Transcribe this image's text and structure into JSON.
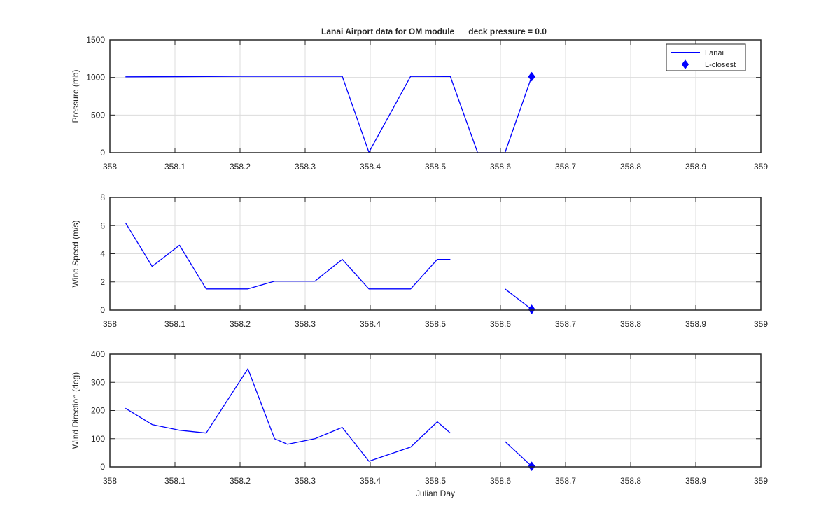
{
  "title": "Lanai Airport data for OM module      deck pressure = 0.0",
  "colors": {
    "series": "#0000ff",
    "grid": "#dcdcdc",
    "axes": "#262626",
    "background": "#ffffff"
  },
  "chart_data": [
    {
      "type": "line",
      "ylabel": "Pressure (mb)",
      "xlabel": "",
      "xlim": [
        358,
        359
      ],
      "ylim": [
        0,
        1500
      ],
      "xticks": [
        "358",
        "358.1",
        "358.2",
        "358.3",
        "358.4",
        "358.5",
        "358.6",
        "358.7",
        "358.8",
        "358.9",
        "359"
      ],
      "yticks": [
        "0",
        "500",
        "1000",
        "1500"
      ],
      "grid": true,
      "legend": {
        "placement": "top-right",
        "entries": [
          "Lanai",
          "L-closest"
        ]
      },
      "series": [
        {
          "name": "Lanai",
          "segments": [
            [
              [
                358.024,
                1008
              ],
              [
                358.15,
                1012
              ],
              [
                358.2,
                1015
              ],
              [
                358.357,
                1015
              ],
              [
                358.398,
                5
              ],
              [
                358.462,
                1015
              ],
              [
                358.523,
                1012
              ],
              [
                358.565,
                0
              ],
              [
                358.607,
                0
              ],
              [
                358.648,
                1010
              ]
            ]
          ]
        },
        {
          "name": "L-closest",
          "marker": "diamond",
          "points": [
            [
              358.648,
              1010
            ]
          ]
        }
      ]
    },
    {
      "type": "line",
      "ylabel": "Wind Speed (m/s)",
      "xlabel": "",
      "xlim": [
        358,
        359
      ],
      "ylim": [
        0,
        8
      ],
      "xticks": [
        "358",
        "358.1",
        "358.2",
        "358.3",
        "358.4",
        "358.5",
        "358.6",
        "358.7",
        "358.8",
        "358.9",
        "359"
      ],
      "yticks": [
        "0",
        "2",
        "4",
        "6",
        "8"
      ],
      "grid": true,
      "series": [
        {
          "name": "Lanai",
          "segments": [
            [
              [
                358.024,
                6.2
              ],
              [
                358.065,
                3.1
              ],
              [
                358.107,
                4.6
              ],
              [
                358.148,
                1.5
              ],
              [
                358.212,
                1.5
              ],
              [
                358.253,
                2.05
              ],
              [
                358.315,
                2.05
              ],
              [
                358.357,
                3.6
              ],
              [
                358.398,
                1.5
              ],
              [
                358.462,
                1.5
              ],
              [
                358.503,
                3.6
              ],
              [
                358.523,
                3.6
              ]
            ],
            [
              [
                358.607,
                1.5
              ],
              [
                358.648,
                0.05
              ]
            ]
          ]
        },
        {
          "name": "L-closest",
          "marker": "diamond",
          "points": [
            [
              358.648,
              0.05
            ]
          ]
        }
      ]
    },
    {
      "type": "line",
      "ylabel": "Wind Direction (deg)",
      "xlabel": "Julian Day",
      "xlim": [
        358,
        359
      ],
      "ylim": [
        0,
        400
      ],
      "xticks": [
        "358",
        "358.1",
        "358.2",
        "358.3",
        "358.4",
        "358.5",
        "358.6",
        "358.7",
        "358.8",
        "358.9",
        "359"
      ],
      "yticks": [
        "0",
        "100",
        "200",
        "300",
        "400"
      ],
      "grid": true,
      "series": [
        {
          "name": "Lanai",
          "segments": [
            [
              [
                358.024,
                208
              ],
              [
                358.065,
                150
              ],
              [
                358.107,
                130
              ],
              [
                358.148,
                120
              ],
              [
                358.212,
                348
              ],
              [
                358.253,
                100
              ],
              [
                358.273,
                80
              ],
              [
                358.315,
                100
              ],
              [
                358.357,
                140
              ],
              [
                358.398,
                20
              ],
              [
                358.462,
                70
              ],
              [
                358.503,
                160
              ],
              [
                358.523,
                120
              ]
            ],
            [
              [
                358.607,
                90
              ],
              [
                358.648,
                2
              ]
            ]
          ]
        },
        {
          "name": "L-closest",
          "marker": "diamond",
          "points": [
            [
              358.648,
              2
            ]
          ]
        }
      ]
    }
  ]
}
